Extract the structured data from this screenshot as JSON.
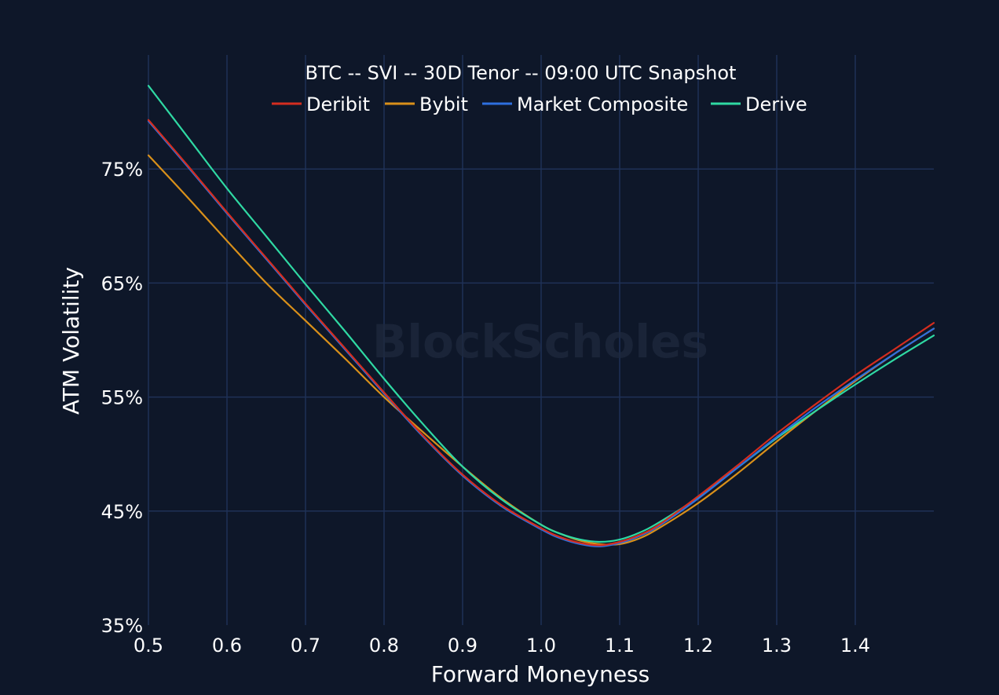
{
  "chart_data": {
    "type": "line",
    "title": "BTC -- SVI -- 30D Tenor -- 09:00 UTC Snapshot",
    "xlabel": "Forward Moneyness",
    "ylabel": "ATM Volatility",
    "xlim": [
      0.5,
      1.5
    ],
    "ylim": [
      35,
      85
    ],
    "x_ticks": [
      0.5,
      0.6,
      0.7,
      0.8,
      0.9,
      1.0,
      1.1,
      1.2,
      1.3,
      1.4
    ],
    "x_tick_labels": [
      "0.5",
      "0.6",
      "0.7",
      "0.8",
      "0.9",
      "1.0",
      "1.1",
      "1.2",
      "1.3",
      "1.4"
    ],
    "y_ticks": [
      35,
      45,
      55,
      65,
      75
    ],
    "y_tick_labels": [
      "35%",
      "45%",
      "55%",
      "65%",
      "75%"
    ],
    "grid": true,
    "legend_position": "top-center",
    "watermark": "BlockScholes",
    "x": [
      0.5,
      0.55,
      0.6,
      0.65,
      0.7,
      0.75,
      0.8,
      0.85,
      0.9,
      0.95,
      1.0,
      1.025,
      1.05,
      1.075,
      1.1,
      1.125,
      1.15,
      1.2,
      1.25,
      1.3,
      1.35,
      1.4,
      1.45,
      1.5
    ],
    "series": [
      {
        "name": "Deribit",
        "color": "#d42d1f",
        "values": [
          79.3,
          75.3,
          71.2,
          67.2,
          63.2,
          59.3,
          55.4,
          51.6,
          48.2,
          45.5,
          43.5,
          42.7,
          42.2,
          42.0,
          42.3,
          42.9,
          43.8,
          46.3,
          49.0,
          51.8,
          54.4,
          56.9,
          59.2,
          61.5
        ]
      },
      {
        "name": "Bybit",
        "color": "#d9901a",
        "values": [
          76.2,
          72.5,
          68.7,
          65.0,
          61.7,
          58.4,
          55.0,
          51.9,
          48.9,
          46.1,
          43.8,
          43.0,
          42.4,
          42.1,
          42.1,
          42.6,
          43.5,
          45.7,
          48.3,
          51.1,
          53.8,
          56.4,
          58.8,
          61.0
        ]
      },
      {
        "name": "Market Composite",
        "color": "#2e6fde",
        "values": [
          79.2,
          75.2,
          71.1,
          67.1,
          63.1,
          59.2,
          55.3,
          51.5,
          48.1,
          45.4,
          43.4,
          42.6,
          42.1,
          41.9,
          42.2,
          42.8,
          43.7,
          46.1,
          48.8,
          51.5,
          54.1,
          56.5,
          58.8,
          61.0
        ]
      },
      {
        "name": "Derive",
        "color": "#2fd9a3",
        "values": [
          82.3,
          77.8,
          73.3,
          69.1,
          64.9,
          60.8,
          56.6,
          52.6,
          48.9,
          46.0,
          43.8,
          43.0,
          42.5,
          42.3,
          42.5,
          43.1,
          44.0,
          46.2,
          48.8,
          51.4,
          53.8,
          56.1,
          58.3,
          60.4
        ]
      }
    ]
  }
}
